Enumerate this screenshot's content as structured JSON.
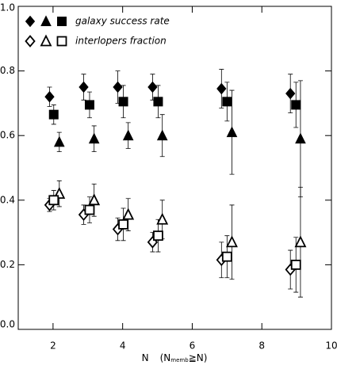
{
  "chart_data": {
    "type": "scatter",
    "xlabel": {
      "symbol": "N",
      "condition_open": "(N",
      "subscript": "memb",
      "condition_close": "≧N)"
    },
    "xlim": [
      1,
      10
    ],
    "xticks": [
      2,
      4,
      6,
      8,
      10
    ],
    "ylim": [
      0,
      1
    ],
    "yticks": [
      {
        "value": 0,
        "label": "0.0"
      },
      0.2,
      0.4,
      0.6,
      0.8,
      {
        "value": 1,
        "label": "1.0"
      }
    ],
    "color": "#000000",
    "groups": [
      {
        "name": "galaxy success rate",
        "filled": true,
        "series": [
          {
            "marker": "diamond",
            "x": [
              1.9,
              2.88,
              3.86,
              4.86,
              6.84,
              8.82
            ],
            "values": [
              0.72,
              0.75,
              0.75,
              0.75,
              0.745,
              0.73
            ],
            "errors": [
              0.03,
              0.04,
              0.05,
              0.04,
              0.06,
              0.06
            ]
          },
          {
            "marker": "triangle",
            "x": [
              2.18,
              3.18,
              4.16,
              5.14,
              7.14,
              9.11
            ],
            "values": [
              0.58,
              0.59,
              0.6,
              0.6,
              0.61,
              0.59
            ],
            "errors": [
              0.03,
              0.04,
              0.04,
              0.065,
              0.13,
              0.18
            ]
          },
          {
            "marker": "square",
            "x": [
              2.02,
              3.05,
              4.02,
              5.02,
              7.0,
              8.98
            ],
            "values": [
              0.665,
              0.695,
              0.705,
              0.705,
              0.705,
              0.695
            ],
            "errors": [
              0.03,
              0.04,
              0.05,
              0.05,
              0.06,
              0.07
            ]
          }
        ]
      },
      {
        "name": "interlopers fraction",
        "filled": false,
        "series": [
          {
            "marker": "diamond",
            "x": [
              1.9,
              2.88,
              3.86,
              4.86,
              6.84,
              8.82
            ],
            "values": [
              0.385,
              0.355,
              0.31,
              0.27,
              0.215,
              0.185
            ],
            "errors": [
              0.02,
              0.03,
              0.035,
              0.03,
              0.055,
              0.06
            ]
          },
          {
            "marker": "triangle",
            "x": [
              2.18,
              3.18,
              4.16,
              5.14,
              7.14,
              9.11
            ],
            "values": [
              0.42,
              0.4,
              0.355,
              0.34,
              0.27,
              0.27
            ],
            "errors": [
              0.04,
              0.05,
              0.05,
              0.06,
              0.115,
              0.17
            ]
          },
          {
            "marker": "square",
            "x": [
              2.02,
              3.05,
              4.02,
              5.02,
              7.0,
              8.98
            ],
            "values": [
              0.4,
              0.37,
              0.325,
              0.29,
              0.225,
              0.2
            ],
            "errors": [
              0.03,
              0.04,
              0.05,
              0.05,
              0.065,
              0.085
            ]
          }
        ]
      }
    ]
  }
}
